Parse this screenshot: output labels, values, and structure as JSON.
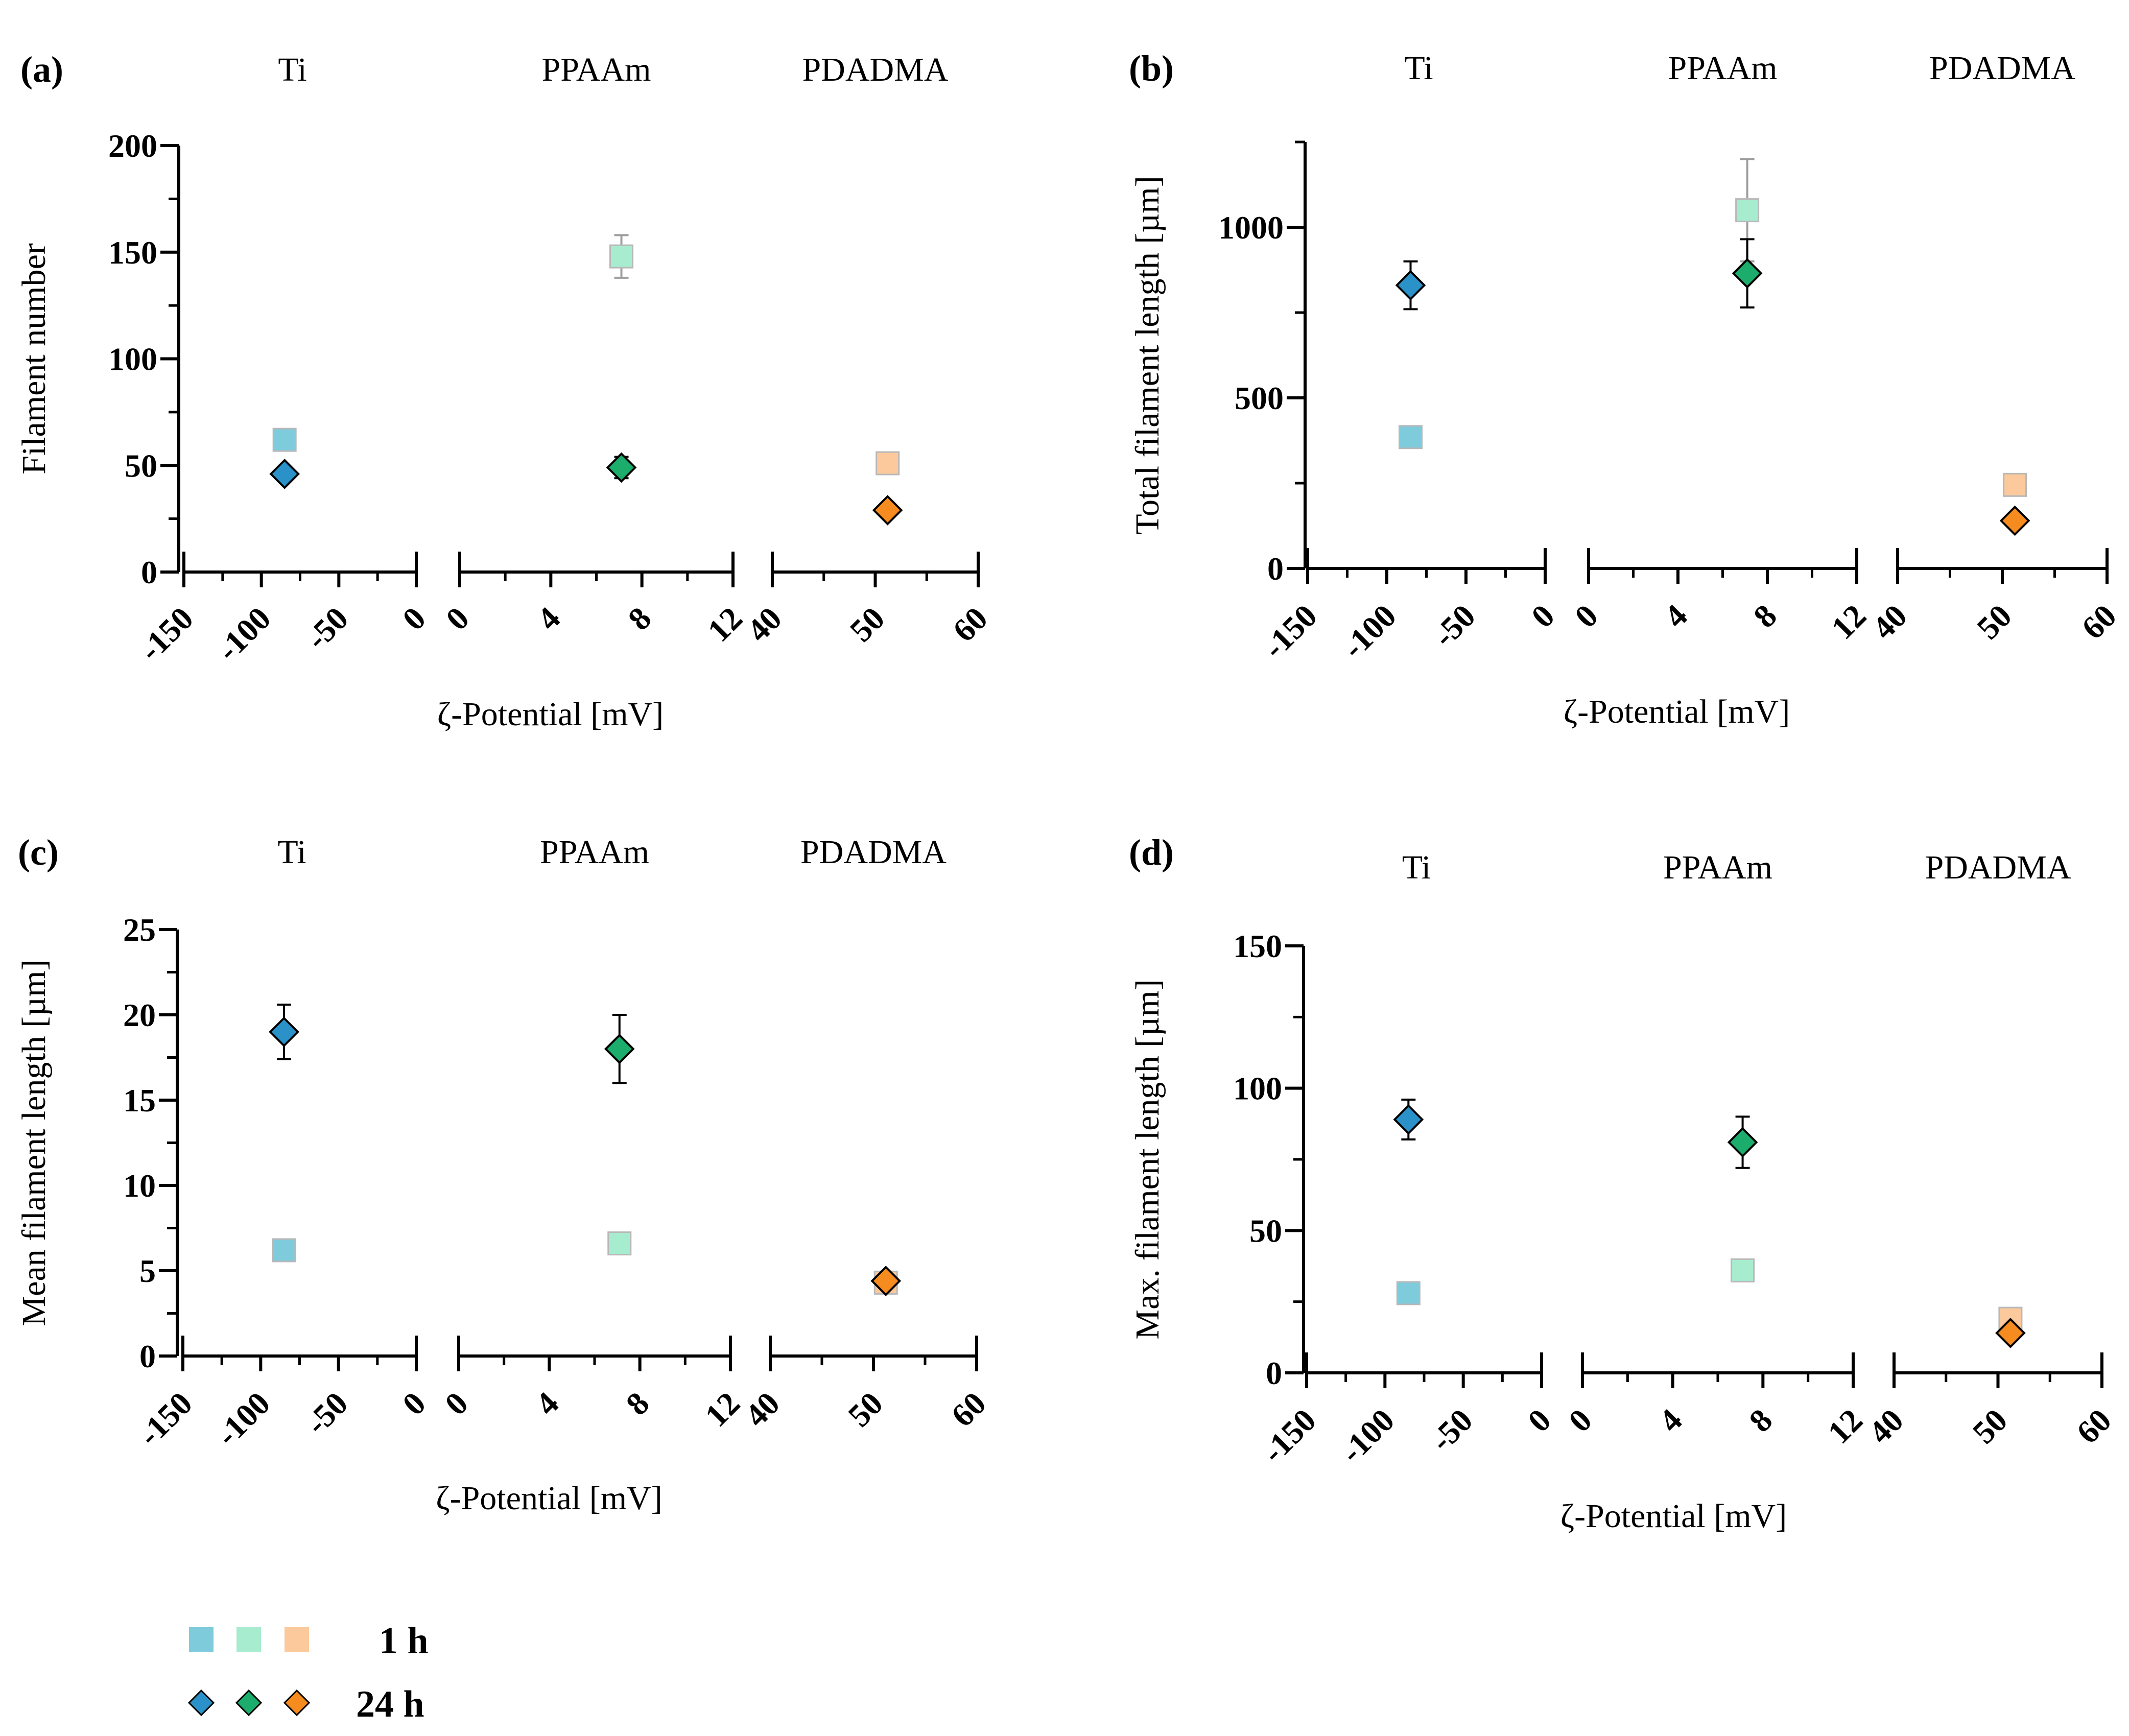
{
  "colors": {
    "ti_1h": "#7ecbdc",
    "ppaam_1h": "#a8ecd0",
    "pdadma_1h": "#fbc99b",
    "ti_24h": "#2b92c9",
    "ppaam_24h": "#1cac6c",
    "pdadma_24h": "#f68b1f",
    "err_1h": "#9e9e9e",
    "err_24h": "#000000"
  },
  "legend": {
    "row1_label": "1 h",
    "row2_label": "24 h"
  },
  "chart_data": [
    {
      "type": "scatter",
      "panel_label": "(a)",
      "ylabel": "Filament number",
      "xlabel": "ζ-Potential [mV]",
      "ylim": [
        0,
        200
      ],
      "yticks": [
        "0",
        "50",
        "100",
        "150",
        "200"
      ],
      "groups": [
        {
          "name": "Ti",
          "xlim": [
            -150,
            0
          ],
          "xticks": [
            "-150",
            "-100",
            "-50",
            "0"
          ],
          "h1": {
            "x": -85,
            "y": 62,
            "err": 3
          },
          "h24": {
            "x": -85,
            "y": 46,
            "err": 2
          }
        },
        {
          "name": "PPAAm",
          "xlim": [
            0,
            12
          ],
          "xticks": [
            "0",
            "4",
            "8",
            "12"
          ],
          "h1": {
            "x": 7.1,
            "y": 148,
            "err": 10
          },
          "h24": {
            "x": 7.1,
            "y": 49,
            "err": 5
          }
        },
        {
          "name": "PDADMA",
          "xlim": [
            40,
            60
          ],
          "xticks": [
            "40",
            "50",
            "60"
          ],
          "h1": {
            "x": 51.2,
            "y": 51,
            "err": 5
          },
          "h24": {
            "x": 51.2,
            "y": 29,
            "err": 2
          }
        }
      ]
    },
    {
      "type": "scatter",
      "panel_label": "(b)",
      "ylabel": "Total filament length [µm]",
      "xlabel": "ζ-Potential [mV]",
      "ylim": [
        0,
        1250
      ],
      "yticks": [
        "0",
        "500",
        "1000"
      ],
      "groups": [
        {
          "name": "Ti",
          "xlim": [
            -150,
            0
          ],
          "xticks": [
            "-150",
            "-100",
            "-50",
            "0"
          ],
          "h1": {
            "x": -85,
            "y": 385,
            "err": 25
          },
          "h24": {
            "x": -85,
            "y": 830,
            "err": 70
          }
        },
        {
          "name": "PPAAm",
          "xlim": [
            0,
            12
          ],
          "xticks": [
            "0",
            "4",
            "8",
            "12"
          ],
          "h1": {
            "x": 7.1,
            "y": 1050,
            "err": 150
          },
          "h24": {
            "x": 7.1,
            "y": 865,
            "err": 100
          }
        },
        {
          "name": "PDADMA",
          "xlim": [
            40,
            60
          ],
          "xticks": [
            "40",
            "50",
            "60"
          ],
          "h1": {
            "x": 51.2,
            "y": 245,
            "err": 10
          },
          "h24": {
            "x": 51.2,
            "y": 140,
            "err": 20
          }
        }
      ]
    },
    {
      "type": "scatter",
      "panel_label": "(c)",
      "ylabel": "Mean filament length [µm]",
      "xlabel": "ζ-Potential [mV]",
      "ylim": [
        0,
        25
      ],
      "yticks": [
        "0",
        "5",
        "10",
        "15",
        "20",
        "25"
      ],
      "groups": [
        {
          "name": "Ti",
          "xlim": [
            -150,
            0
          ],
          "xticks": [
            "-150",
            "-100",
            "-50",
            "0"
          ],
          "h1": {
            "x": -85,
            "y": 6.2,
            "err": 0.3
          },
          "h24": {
            "x": -85,
            "y": 19.0,
            "err": 1.6
          }
        },
        {
          "name": "PPAAm",
          "xlim": [
            0,
            12
          ],
          "xticks": [
            "0",
            "4",
            "8",
            "12"
          ],
          "h1": {
            "x": 7.1,
            "y": 6.6,
            "err": 0.3
          },
          "h24": {
            "x": 7.1,
            "y": 18.0,
            "err": 2.0
          }
        },
        {
          "name": "PDADMA",
          "xlim": [
            40,
            60
          ],
          "xticks": [
            "40",
            "50",
            "60"
          ],
          "h1": {
            "x": 51.2,
            "y": 4.3,
            "err": 0.2
          },
          "h24": {
            "x": 51.2,
            "y": 4.4,
            "err": 0.3
          }
        }
      ]
    },
    {
      "type": "scatter",
      "panel_label": "(d)",
      "ylabel": "Max. filament length [µm]",
      "xlabel": "ζ-Potential [mV]",
      "ylim": [
        0,
        150
      ],
      "yticks": [
        "0",
        "50",
        "100",
        "150"
      ],
      "groups": [
        {
          "name": "Ti",
          "xlim": [
            -150,
            0
          ],
          "xticks": [
            "-150",
            "-100",
            "-50",
            "0"
          ],
          "h1": {
            "x": -85,
            "y": 28,
            "err": 2
          },
          "h24": {
            "x": -85,
            "y": 89,
            "err": 7
          }
        },
        {
          "name": "PPAAm",
          "xlim": [
            0,
            12
          ],
          "xticks": [
            "0",
            "4",
            "8",
            "12"
          ],
          "h1": {
            "x": 7.1,
            "y": 36,
            "err": 2
          },
          "h24": {
            "x": 7.1,
            "y": 81,
            "err": 9
          }
        },
        {
          "name": "PDADMA",
          "xlim": [
            40,
            60
          ],
          "xticks": [
            "40",
            "50",
            "60"
          ],
          "h1": {
            "x": 51.2,
            "y": 19,
            "err": 1
          },
          "h24": {
            "x": 51.2,
            "y": 14,
            "err": 2
          }
        }
      ]
    }
  ]
}
